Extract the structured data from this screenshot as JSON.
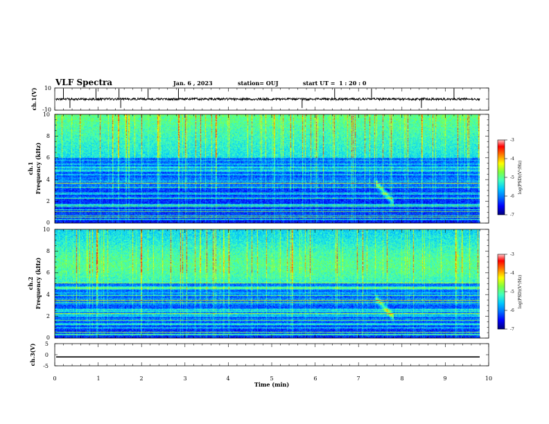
{
  "header": {
    "title": "VLF Spectra",
    "date": "Jan. 6 , 2023",
    "station": "station= OUJ",
    "start": "start UT =  1 : 20 : 0"
  },
  "chart_data": [
    {
      "type": "line",
      "panel": "ch1-waveform",
      "ylabel": "ch.1(V)",
      "ylim": [
        -10,
        10
      ],
      "ytick_labels": [
        "10",
        "-10"
      ],
      "baseline_value": 0,
      "noise_amplitude": 1,
      "spike_times_min": [
        0.2,
        0.35,
        0.95,
        1.48,
        1.52,
        2.15,
        2.85,
        5.7,
        6.45,
        7.3,
        8.45,
        9.2
      ]
    },
    {
      "type": "heatmap",
      "panel": "ch1-spectrogram",
      "ylabel": "ch.1\nFrequency (kHz)",
      "ylim": [
        0,
        10
      ],
      "ytick_labels": [
        "0",
        "2",
        "4",
        "6",
        "8",
        "10"
      ],
      "colorbar": {
        "label": "log(PSD)(V²/Hz)",
        "range": [
          -7,
          -3
        ],
        "tick_labels": [
          "-3",
          "-4",
          "-5",
          "-6",
          "-7"
        ]
      },
      "hiss_upper_khz": 6,
      "event_time_min": 7.45
    },
    {
      "type": "heatmap",
      "panel": "ch2-spectrogram",
      "ylabel": "ch.2\nFrequency (kHz)",
      "ylim": [
        0,
        10
      ],
      "ytick_labels": [
        "0",
        "2",
        "4",
        "6",
        "8",
        "10"
      ],
      "colorbar": {
        "label": "log(PSD)(V²/Hz)",
        "range": [
          -7,
          -3
        ],
        "tick_labels": [
          "-3",
          "-4",
          "-5",
          "-6",
          "-7"
        ]
      },
      "hiss_upper_khz": 5,
      "event_time_min": 7.45
    },
    {
      "type": "line",
      "panel": "ch3-waveform",
      "ylabel": "ch.3(V)",
      "ylim": [
        -5,
        5
      ],
      "ytick_labels": [
        "5",
        "0",
        "-5"
      ],
      "baseline_value": -1
    }
  ],
  "xaxis": {
    "label": "Time (min)",
    "range": [
      0,
      10
    ],
    "tick_labels": [
      "0",
      "1",
      "2",
      "3",
      "4",
      "5",
      "6",
      "7",
      "8",
      "9",
      "10"
    ]
  },
  "colors": {
    "cmap": [
      "#000080",
      "#0000ff",
      "#0070ff",
      "#00c8ff",
      "#40ffc0",
      "#80ff40",
      "#ffff00",
      "#ff8000",
      "#ff0000",
      "#ffffff"
    ]
  }
}
